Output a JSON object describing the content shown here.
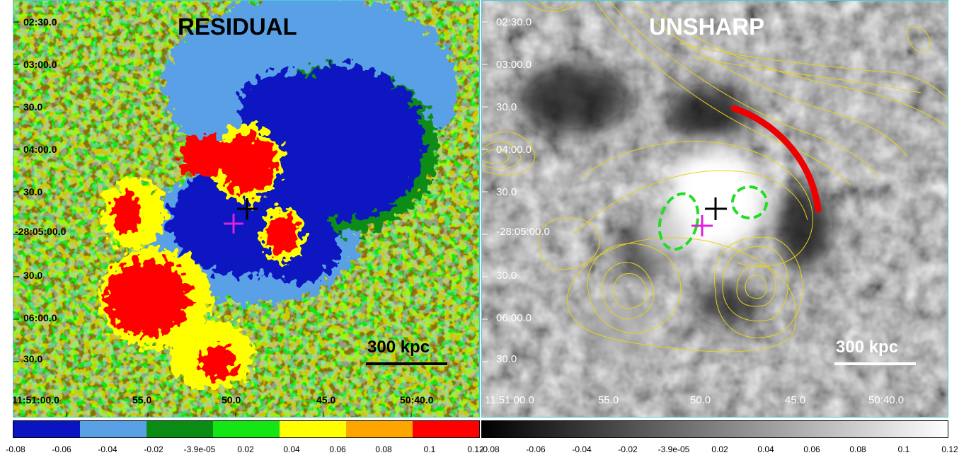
{
  "left_panel": {
    "title": "RESIDUAL",
    "dec_labels": [
      "02:30.0",
      "03:00.0",
      "30.0",
      "04:00.0",
      "30.0",
      "-28:05:00.0",
      "30.0",
      "06:00.0",
      "30.0"
    ],
    "ra_labels": [
      "11:51:00.0",
      "55.0",
      "50.0",
      "45.0",
      "50:40.0"
    ],
    "scale_label": "300 kpc"
  },
  "right_panel": {
    "title": "UNSHARP",
    "dec_labels": [
      "02:30.0",
      "03:00.0",
      "30.0",
      "04:00.0",
      "30.0",
      "-28:05:00.0",
      "30.0",
      "06:00.0",
      "30.0"
    ],
    "ra_labels": [
      "11:51:00.0",
      "55.0",
      "50.0",
      "45.0",
      "50:40.0"
    ],
    "scale_label": "300 kpc"
  },
  "colorbar_left": {
    "colors": [
      "#0a14c0",
      "#5aa0e6",
      "#0a8c14",
      "#14e614",
      "#ffff00",
      "#ffa500",
      "#ff0000"
    ],
    "ticks": [
      "-0.08",
      "-0.06",
      "-0.04",
      "-0.02",
      "-3.9e-05",
      "0.02",
      "0.04",
      "0.06",
      "0.08",
      "0.1",
      "0.12"
    ]
  },
  "colorbar_right": {
    "ticks": [
      "-0.08",
      "-0.06",
      "-0.04",
      "-0.02",
      "-3.9e-05",
      "0.02",
      "0.04",
      "0.06",
      "0.08",
      "0.1",
      "0.12"
    ]
  },
  "colors": {
    "frame": "#44ccdd",
    "contour": "#e8d21a",
    "arc": "#ee0000",
    "ellipse": "#22dd22",
    "cross_black": "#000000",
    "cross_magenta": "#dd22dd"
  }
}
